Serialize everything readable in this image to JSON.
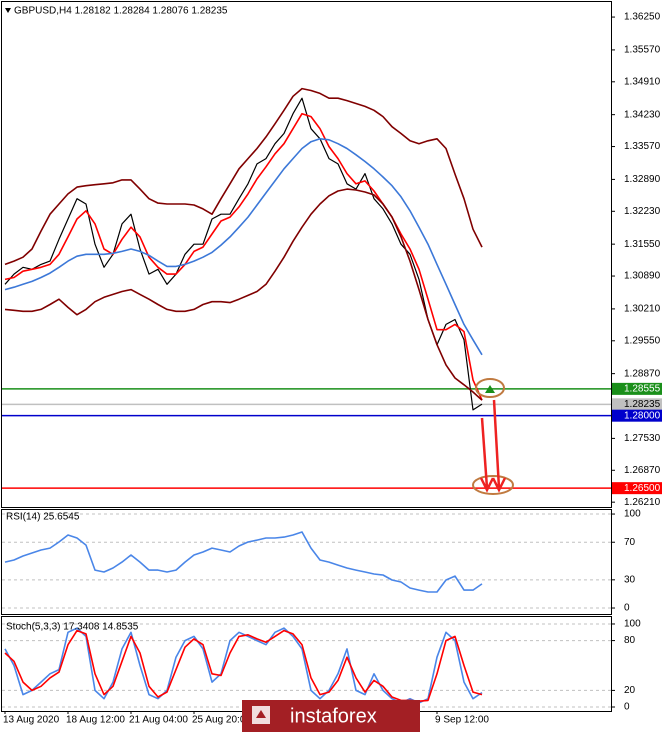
{
  "chart_data": [
    {
      "type": "line",
      "title": "GBPUSD,H4  1.28182 1.28284 1.28076 1.28235",
      "categories": [
        "13 Aug 2020",
        null,
        null,
        null,
        null,
        null,
        null,
        "18 Aug 12:00",
        null,
        null,
        null,
        null,
        null,
        null,
        "21 Aug 04:00",
        null,
        null,
        null,
        null,
        null,
        null,
        "25 Aug 20:00",
        null,
        null,
        null,
        null,
        null,
        null,
        null,
        null,
        null,
        null,
        null,
        null,
        null,
        null,
        null,
        null,
        null,
        null,
        null,
        null,
        null,
        null,
        null,
        null,
        null,
        null,
        "9 Sep 12:00",
        null,
        null,
        null,
        null,
        null
      ],
      "series": [
        {
          "color": "#000000",
          "values": [
            1.3072,
            1.3093,
            1.3107,
            1.3103,
            1.3113,
            1.312,
            1.3165,
            1.3207,
            1.3249,
            1.3238,
            1.3155,
            1.3107,
            1.3134,
            1.3197,
            1.3217,
            1.3145,
            1.3093,
            1.3103,
            1.3072,
            1.3093,
            1.3134,
            1.3155,
            1.3155,
            1.3207,
            1.3217,
            1.3217,
            1.3249,
            1.328,
            1.3321,
            1.3332,
            1.3363,
            1.3384,
            1.3425,
            1.3457,
            1.3394,
            1.3373,
            1.3332,
            1.3321,
            1.328,
            1.3269,
            1.3301,
            1.3249,
            1.3228,
            1.3197,
            1.3155,
            1.3134,
            1.3082,
            1.2999,
            1.2947,
            1.2989,
            1.2999,
            1.2957,
            1.2812,
            1.2824
          ]
        },
        {
          "color": "#ff0000",
          "values": [
            1.3082,
            1.3086,
            1.3099,
            1.3103,
            1.3107,
            1.3113,
            1.3134,
            1.317,
            1.3207,
            1.3224,
            1.3197,
            1.3145,
            1.3134,
            1.3165,
            1.319,
            1.317,
            1.3128,
            1.3107,
            1.3093,
            1.3093,
            1.3113,
            1.314,
            1.3149,
            1.3176,
            1.3203,
            1.3211,
            1.3232,
            1.3259,
            1.329,
            1.3315,
            1.3342,
            1.3363,
            1.3394,
            1.3425,
            1.3419,
            1.3394,
            1.3357,
            1.3332,
            1.3301,
            1.328,
            1.3286,
            1.3265,
            1.3238,
            1.3211,
            1.3176,
            1.3145,
            1.3103,
            1.3041,
            1.2978,
            1.2978,
            1.2989,
            1.2974,
            1.2874,
            1.2832
          ]
        },
        {
          "color": "#3c78d8",
          "values": [
            1.3061,
            1.3066,
            1.3072,
            1.3078,
            1.3086,
            1.3095,
            1.3107,
            1.312,
            1.313,
            1.3134,
            1.3134,
            1.3134,
            1.3136,
            1.314,
            1.3145,
            1.314,
            1.3132,
            1.312,
            1.3109,
            1.3109,
            1.3113,
            1.312,
            1.3128,
            1.3138,
            1.3153,
            1.317,
            1.319,
            1.3211,
            1.3236,
            1.3261,
            1.3286,
            1.3311,
            1.3332,
            1.3353,
            1.3367,
            1.3373,
            1.3371,
            1.3363,
            1.3353,
            1.334,
            1.3326,
            1.3311,
            1.3294,
            1.3276,
            1.3253,
            1.3224,
            1.319,
            1.3155,
            1.3113,
            1.3072,
            1.303,
            1.2989,
            1.2957,
            1.2926
          ]
        },
        {
          "color": "#800000",
          "values": [
            1.3113,
            1.312,
            1.3128,
            1.3145,
            1.3182,
            1.3217,
            1.3238,
            1.3259,
            1.3273,
            1.3276,
            1.3278,
            1.328,
            1.3282,
            1.3288,
            1.3288,
            1.3269,
            1.3249,
            1.324,
            1.3238,
            1.3238,
            1.3238,
            1.3236,
            1.3228,
            1.3217,
            1.3249,
            1.328,
            1.3311,
            1.3332,
            1.3353,
            1.3377,
            1.3404,
            1.3432,
            1.3461,
            1.3477,
            1.3473,
            1.3467,
            1.3457,
            1.3457,
            1.3452,
            1.3446,
            1.344,
            1.3432,
            1.3419,
            1.3398,
            1.3384,
            1.3369,
            1.3363,
            1.3369,
            1.3373,
            1.3353,
            1.33,
            1.3249,
            1.3186,
            1.3149
          ]
        },
        {
          "color": "#800000",
          "values": [
            1.302,
            1.3018,
            1.3016,
            1.3016,
            1.302,
            1.303,
            1.3041,
            1.3024,
            1.3009,
            1.302,
            1.3036,
            1.3045,
            1.3051,
            1.3057,
            1.3061,
            1.3051,
            1.3041,
            1.303,
            1.302,
            1.3016,
            1.3016,
            1.302,
            1.303,
            1.3036,
            1.3036,
            1.3034,
            1.3041,
            1.3049,
            1.3057,
            1.3072,
            1.3099,
            1.3128,
            1.3161,
            1.319,
            1.3217,
            1.3238,
            1.3255,
            1.3265,
            1.3269,
            1.3267,
            1.3263,
            1.3257,
            1.3238,
            1.3211,
            1.317,
            1.312,
            1.3061,
            1.2999,
            1.2947,
            1.2905,
            1.2878,
            1.2864,
            1.2849,
            1.2832
          ]
        }
      ],
      "ylim": [
        1.2611,
        1.36541
      ],
      "yticks": [
        {
          "value": 1.3625,
          "label": "1.36250"
        },
        {
          "value": 1.3557,
          "label": "1.35570"
        },
        {
          "value": 1.3491,
          "label": "1.34910"
        },
        {
          "value": 1.3423,
          "label": "1.34230"
        },
        {
          "value": 1.3357,
          "label": "1.33570"
        },
        {
          "value": 1.3289,
          "label": "1.32890"
        },
        {
          "value": 1.3223,
          "label": "1.32230"
        },
        {
          "value": 1.3155,
          "label": "1.31550"
        },
        {
          "value": 1.3089,
          "label": "1.30890"
        },
        {
          "value": 1.3021,
          "label": "1.30210"
        },
        {
          "value": 1.2955,
          "label": "1.29550"
        },
        {
          "value": 1.2887,
          "label": "1.28870"
        },
        {
          "value": 1.2753,
          "label": "1.27530"
        },
        {
          "value": 1.2687,
          "label": "1.26870"
        },
        {
          "value": 1.2621,
          "label": "1.26210"
        }
      ],
      "levels": [
        {
          "value": 1.28555,
          "label": "1.28555",
          "color": "#1a8f1a"
        },
        {
          "value": 1.28235,
          "label": "1.28235",
          "color": "#c0c0c0"
        },
        {
          "value": 1.28,
          "label": "1.28000",
          "color": "#0000cc"
        },
        {
          "value": 1.265,
          "label": "1.26500",
          "color": "#ff0000"
        }
      ],
      "grid": false
    },
    {
      "type": "line",
      "title": "RSI(14) 25.6545",
      "series": [
        {
          "color": "#4a86e8",
          "values": [
            48.9,
            51.1,
            55.3,
            58.5,
            61.7,
            63.8,
            70.2,
            77.7,
            74.5,
            67.0,
            40.4,
            38.3,
            42.6,
            48.9,
            56.4,
            48.9,
            40.4,
            40.4,
            38.3,
            40.4,
            48.9,
            56.4,
            59.6,
            63.8,
            61.7,
            59.6,
            66.0,
            70.2,
            72.3,
            74.5,
            74.5,
            75.5,
            77.7,
            80.9,
            63.8,
            51.1,
            48.9,
            45.7,
            42.6,
            40.4,
            38.3,
            36.2,
            35.1,
            29.8,
            27.7,
            21.3,
            19.1,
            17.0,
            17.0,
            29.8,
            34.0,
            19.1,
            19.1,
            25.7
          ]
        }
      ],
      "ylim": [
        -5.3,
        104.3
      ],
      "yticks": [
        100,
        70,
        30,
        0
      ],
      "grid": true
    },
    {
      "type": "line",
      "title": "Stoch(5,3,3) 17.3408 14.8535",
      "series": [
        {
          "color": "#4a86e8",
          "values": [
            70,
            50,
            15,
            20,
            30,
            40,
            45,
            90,
            95,
            85,
            20,
            10,
            30,
            70,
            90,
            50,
            15,
            10,
            20,
            60,
            80,
            85,
            70,
            30,
            40,
            80,
            90,
            85,
            80,
            75,
            90,
            95,
            85,
            70,
            20,
            10,
            20,
            40,
            70,
            20,
            15,
            40,
            20,
            10,
            5,
            10,
            5,
            10,
            60,
            90,
            80,
            30,
            10,
            17.3
          ]
        },
        {
          "color": "#ff0000",
          "values": [
            65,
            55,
            30,
            20,
            25,
            35,
            42,
            75,
            92,
            88,
            40,
            15,
            25,
            55,
            85,
            65,
            25,
            12,
            18,
            45,
            72,
            82,
            75,
            40,
            38,
            65,
            85,
            87,
            82,
            78,
            85,
            92,
            88,
            75,
            35,
            15,
            18,
            32,
            60,
            35,
            18,
            32,
            25,
            12,
            8,
            8,
            7,
            8,
            40,
            80,
            85,
            50,
            18,
            14.9
          ]
        }
      ],
      "ylim": [
        -3.6,
        107.2
      ],
      "yticks": [
        100,
        80,
        20,
        0
      ],
      "grid": true
    }
  ],
  "watermark": "instaforex"
}
